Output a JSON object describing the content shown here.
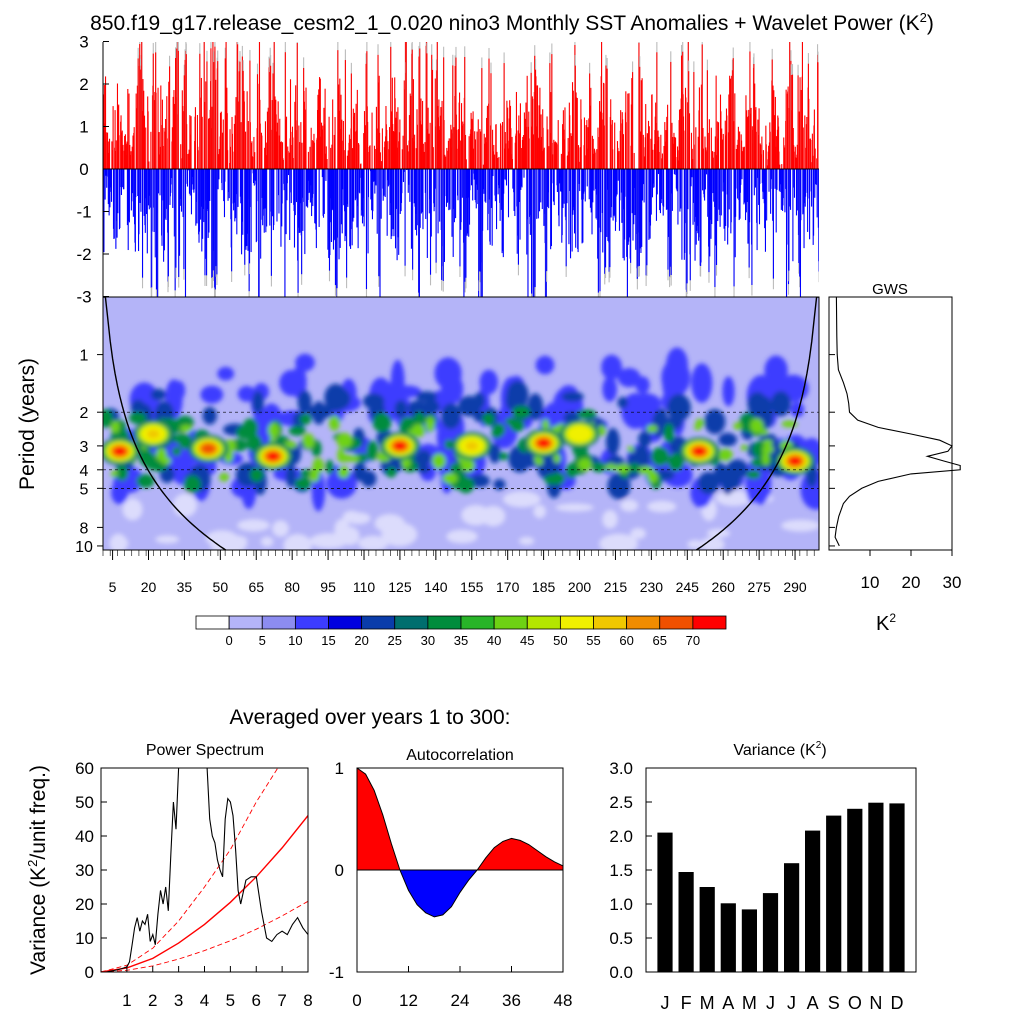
{
  "title": "850.f19_g17.release_cesm2_1_0.020 nino3 Monthly SST Anomalies + Wavelet Power (K",
  "title_sup": "2",
  "title_close": ")",
  "colors": {
    "positive": "#ff0000",
    "negative": "#0000ff",
    "grey_tail": "#bbbbbb",
    "sig_line": "#ff0000"
  },
  "chart_data": [
    {
      "id": "timeseries",
      "type": "bar",
      "description": "Monthly SST anomaly time series (K), red above 0, blue below",
      "x_range_years": [
        1,
        300
      ],
      "ylim": [
        -3,
        3
      ],
      "yticks": [
        -3,
        -2,
        -1,
        0,
        1,
        2,
        3
      ],
      "ytick_labels": [
        "-3",
        "-2",
        "-1",
        "0",
        "1",
        "2",
        "3"
      ]
    },
    {
      "id": "wavelet",
      "type": "heatmap",
      "ylabel": "Period (years)",
      "yticks": [
        1,
        2,
        3,
        4,
        5,
        8,
        10
      ],
      "ytick_labels": [
        "1",
        "2",
        "3",
        "4",
        "5",
        "8",
        "10"
      ],
      "y_dashed_lines": [
        2,
        4,
        5
      ],
      "xticks": [
        5,
        20,
        35,
        50,
        65,
        80,
        95,
        110,
        125,
        140,
        155,
        170,
        185,
        200,
        215,
        230,
        245,
        260,
        275,
        290
      ],
      "xtick_labels": [
        "5",
        "20",
        "35",
        "50",
        "65",
        "80",
        "95",
        "110",
        "125",
        "140",
        "155",
        "170",
        "185",
        "200",
        "215",
        "230",
        "245",
        "260",
        "275",
        "290"
      ],
      "xlim": [
        1,
        300
      ],
      "hotspots": [
        {
          "year": 8,
          "period": 3.2,
          "power": 72
        },
        {
          "year": 22,
          "period": 2.6,
          "power": 55
        },
        {
          "year": 45,
          "period": 3.1,
          "power": 65
        },
        {
          "year": 72,
          "period": 3.4,
          "power": 72
        },
        {
          "year": 125,
          "period": 3.0,
          "power": 72
        },
        {
          "year": 155,
          "period": 3.0,
          "power": 55
        },
        {
          "year": 185,
          "period": 2.9,
          "power": 72
        },
        {
          "year": 200,
          "period": 2.6,
          "power": 50
        },
        {
          "year": 250,
          "period": 3.2,
          "power": 72
        },
        {
          "year": 290,
          "period": 3.6,
          "power": 72
        }
      ]
    },
    {
      "id": "colorbar",
      "type": "table",
      "levels": [
        "0",
        "5",
        "10",
        "15",
        "20",
        "25",
        "30",
        "35",
        "40",
        "45",
        "50",
        "55",
        "60",
        "65",
        "70"
      ],
      "colors": [
        "#ffffff",
        "#b4b4f8",
        "#8c8cf0",
        "#3c3cff",
        "#0000e0",
        "#0a3caa",
        "#006e6e",
        "#008c3c",
        "#28b428",
        "#6ed214",
        "#b4e600",
        "#f0f000",
        "#f0c800",
        "#f08c00",
        "#f05000",
        "#ff0000"
      ]
    },
    {
      "id": "gws",
      "type": "line",
      "title": "GWS",
      "xlabel": "K",
      "xlabel_sup": "2",
      "xlim": [
        0,
        30
      ],
      "xticks": [
        10,
        20,
        30
      ],
      "xtick_labels": [
        "10",
        "20",
        "30"
      ],
      "period": [
        0.5,
        0.8,
        1.0,
        1.2,
        1.4,
        1.6,
        1.8,
        2.0,
        2.2,
        2.4,
        2.6,
        2.8,
        3.0,
        3.2,
        3.4,
        3.6,
        3.8,
        4.0,
        4.2,
        4.6,
        5.0,
        5.5,
        6.0,
        7.0,
        8.0,
        9.0,
        10.0
      ],
      "power": [
        1.8,
        1.9,
        2.0,
        2.3,
        3.5,
        4.4,
        4.8,
        5.0,
        7.0,
        12.0,
        20.0,
        27.0,
        30.0,
        29.0,
        24.0,
        28.0,
        32.0,
        32.0,
        20.0,
        12.0,
        8.0,
        5.0,
        3.5,
        2.4,
        1.8,
        1.5,
        2.5
      ]
    },
    {
      "id": "averaged_header",
      "type": "table",
      "label": "Averaged over years 1 to 300:"
    },
    {
      "id": "power_spectrum",
      "type": "line",
      "title": "Power Spectrum",
      "ylabel": "Variance (K",
      "ylabel_sup": "2",
      "ylabel_close": "/unit freq.)",
      "xlim": [
        0,
        8
      ],
      "ylim": [
        0,
        60
      ],
      "xticks": [
        1,
        2,
        3,
        4,
        5,
        6,
        7,
        8
      ],
      "xtick_labels": [
        "1",
        "2",
        "3",
        "4",
        "5",
        "6",
        "7",
        "8"
      ],
      "yticks": [
        0,
        10,
        20,
        30,
        40,
        50,
        60
      ],
      "ytick_labels": [
        "0",
        "10",
        "20",
        "30",
        "40",
        "50",
        "60"
      ],
      "spectrum": {
        "x": [
          0.2,
          0.4,
          0.6,
          0.8,
          1.0,
          1.1,
          1.2,
          1.3,
          1.4,
          1.5,
          1.6,
          1.7,
          1.8,
          1.9,
          2.0,
          2.1,
          2.2,
          2.3,
          2.4,
          2.5,
          2.6,
          2.7,
          2.8,
          2.9,
          3.0,
          4.1,
          4.2,
          4.3,
          4.4,
          4.5,
          4.6,
          4.7,
          4.8,
          4.9,
          5.0,
          5.1,
          5.2,
          5.3,
          5.4,
          5.6,
          5.8,
          6.0,
          6.2,
          6.4,
          6.6,
          6.8,
          7.0,
          7.2,
          7.4,
          7.6,
          7.8,
          8.0
        ],
        "y": [
          0,
          0.3,
          0.6,
          1.0,
          1.5,
          3,
          8,
          13,
          16,
          12,
          15,
          14,
          17,
          9,
          11,
          8,
          17,
          24,
          20,
          25,
          18,
          35,
          50,
          42,
          60,
          60,
          45,
          40,
          38,
          33,
          30,
          28,
          45,
          51,
          50,
          46,
          36,
          24,
          20,
          27,
          28,
          28,
          18,
          10,
          9,
          11,
          12,
          11,
          14,
          16,
          13,
          11
        ]
      },
      "red_noise_mean": {
        "x": [
          0,
          1,
          2,
          3,
          4,
          5,
          6,
          7,
          8
        ],
        "y": [
          0,
          1.2,
          4,
          8.5,
          14,
          20.5,
          28,
          36.5,
          46
        ]
      },
      "red_noise_upper": {
        "x": [
          0,
          1,
          2,
          3,
          4,
          5,
          6,
          7,
          8
        ],
        "y": [
          0,
          2,
          7,
          15,
          25,
          36,
          50,
          62,
          76
        ]
      },
      "red_noise_lower": {
        "x": [
          0,
          1,
          2,
          3,
          4,
          5,
          6,
          7,
          8
        ],
        "y": [
          0,
          0.5,
          1.8,
          3.8,
          6.3,
          9.2,
          12.6,
          16.5,
          20.8
        ]
      }
    },
    {
      "id": "autocorrelation",
      "type": "area",
      "title": "Autocorrelation",
      "xlim": [
        0,
        48
      ],
      "ylim": [
        -1,
        1
      ],
      "xticks": [
        0,
        12,
        24,
        36,
        48
      ],
      "xtick_labels": [
        "0",
        "12",
        "24",
        "36",
        "48"
      ],
      "yticks": [
        -1,
        0,
        1
      ],
      "ytick_labels": [
        "-1",
        "0",
        "1"
      ],
      "x": [
        0,
        2,
        4,
        6,
        8,
        10,
        12,
        14,
        16,
        18,
        20,
        22,
        24,
        26,
        28,
        30,
        32,
        34,
        36,
        38,
        40,
        42,
        44,
        46,
        48
      ],
      "y": [
        1.0,
        0.94,
        0.78,
        0.54,
        0.26,
        0.0,
        -0.2,
        -0.34,
        -0.42,
        -0.46,
        -0.44,
        -0.36,
        -0.22,
        -0.1,
        0.0,
        0.12,
        0.22,
        0.28,
        0.31,
        0.29,
        0.25,
        0.19,
        0.13,
        0.08,
        0.04
      ]
    },
    {
      "id": "monthly_variance",
      "type": "bar",
      "title": "Variance (K",
      "title_sup": "2",
      "title_close": ")",
      "categories": [
        "J",
        "F",
        "M",
        "A",
        "M",
        "J",
        "J",
        "A",
        "S",
        "O",
        "N",
        "D"
      ],
      "values": [
        2.05,
        1.47,
        1.25,
        1.01,
        0.92,
        1.16,
        1.6,
        2.08,
        2.3,
        2.4,
        2.49,
        2.48
      ],
      "ylim": [
        0,
        3
      ],
      "yticks": [
        0,
        0.5,
        1.0,
        1.5,
        2.0,
        2.5,
        3.0
      ],
      "ytick_labels": [
        "0.0",
        "0.5",
        "1.0",
        "1.5",
        "2.0",
        "2.5",
        "3.0"
      ]
    }
  ]
}
